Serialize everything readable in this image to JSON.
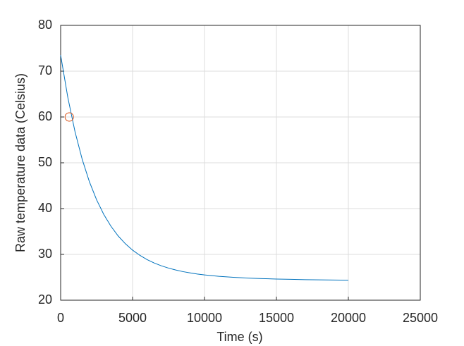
{
  "chart_data": {
    "type": "line",
    "xlabel": "Time (s)",
    "ylabel": "Raw temperature data (Celsius)",
    "xlim": [
      0,
      25000
    ],
    "ylim": [
      20,
      80
    ],
    "xticks": [
      0,
      5000,
      10000,
      15000,
      20000,
      25000
    ],
    "yticks": [
      20,
      30,
      40,
      50,
      60,
      70,
      80
    ],
    "grid": true,
    "series": [
      {
        "color": "#0072bd",
        "marker": "none",
        "x": [
          0,
          500,
          1000,
          1500,
          2000,
          2500,
          3000,
          3500,
          4000,
          4500,
          5000,
          5500,
          6000,
          6500,
          7000,
          7500,
          8000,
          8500,
          9000,
          9500,
          10000,
          11000,
          12000,
          13000,
          14000,
          15000,
          16000,
          17000,
          18000,
          19000,
          20000
        ],
        "values": [
          73.5,
          64.24,
          56.77,
          50.74,
          45.85,
          41.91,
          38.71,
          36.13,
          34.02,
          32.32,
          30.93,
          29.81,
          28.88,
          28.13,
          27.51,
          27.01,
          26.59,
          26.24,
          25.96,
          25.71,
          25.52,
          25.21,
          24.99,
          24.83,
          24.72,
          24.62,
          24.55,
          24.48,
          24.44,
          24.4,
          24.37
        ]
      },
      {
        "color": "#d95319",
        "marker": "o",
        "x": [
          600
        ],
        "values": [
          60
        ]
      }
    ]
  }
}
